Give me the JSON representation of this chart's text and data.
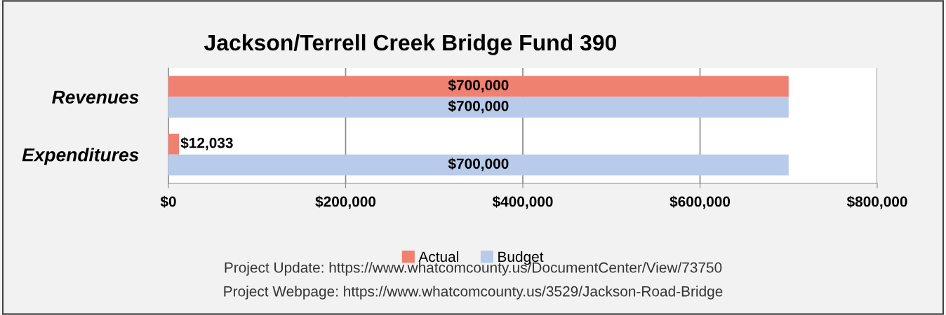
{
  "chart_data": {
    "type": "bar",
    "orientation": "horizontal",
    "title": "Jackson/Terrell Creek Bridge Fund 390",
    "categories": [
      "Revenues",
      "Expenditures"
    ],
    "series": [
      {
        "name": "Actual",
        "color": "#f08070",
        "values": [
          700000,
          12033
        ],
        "value_labels": [
          "$700,000",
          "$12,033"
        ]
      },
      {
        "name": "Budget",
        "color": "#b8cbea",
        "values": [
          700000,
          700000
        ],
        "value_labels": [
          "$700,000",
          "$700,000"
        ]
      }
    ],
    "xlim": [
      0,
      800000
    ],
    "xticks": [
      {
        "value": 0,
        "label": "$0"
      },
      {
        "value": 200000,
        "label": "$200,000"
      },
      {
        "value": 400000,
        "label": "$400,000"
      },
      {
        "value": 600000,
        "label": "$600,000"
      },
      {
        "value": 800000,
        "label": "$800,000"
      }
    ],
    "grid": "x",
    "legend": "bottom",
    "annotations": [
      "Project Update: https://www.whatcomcounty.us/DocumentCenter/View/73750",
      "Project Webpage: https://www.whatcomcounty.us/3529/Jackson-Road-Bridge"
    ]
  }
}
